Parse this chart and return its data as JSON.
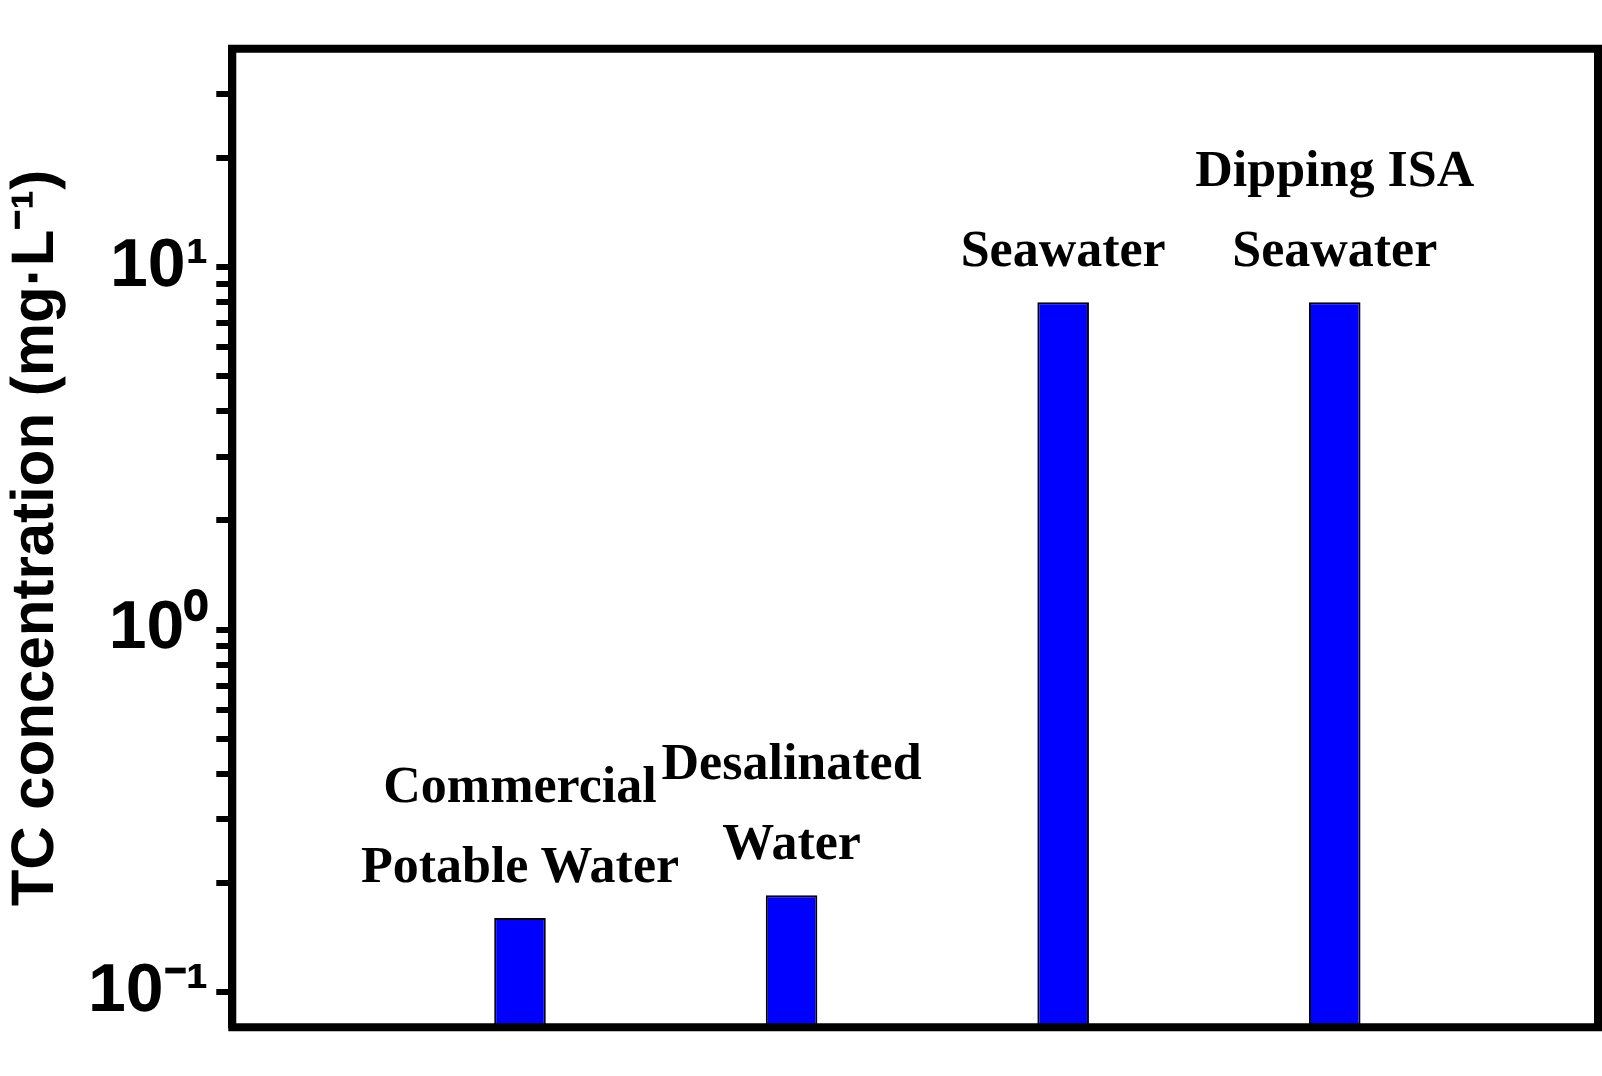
{
  "chart_data": {
    "type": "bar",
    "ylabel": "TC concentration (mg·L⁻¹)",
    "categories": [
      "Commercial Potable Water",
      "Desalinated Water",
      "Seawater",
      "Dipping ISA Seawater"
    ],
    "values": [
      0.16,
      0.185,
      8.0,
      8.0
    ],
    "color": "#0000ff",
    "log": "y",
    "ylim": [
      0.08,
      40
    ],
    "yticks": [
      {
        "value": 0.1,
        "label": "10⁻¹"
      },
      {
        "value": 0.2,
        "label": null
      },
      {
        "value": 0.3,
        "label": null
      },
      {
        "value": 0.4,
        "label": null
      },
      {
        "value": 0.5,
        "label": null
      },
      {
        "value": 0.6,
        "label": null
      },
      {
        "value": 0.7,
        "label": null
      },
      {
        "value": 0.8,
        "label": null
      },
      {
        "value": 0.9,
        "label": null
      },
      {
        "value": 1,
        "label": "10⁰"
      },
      {
        "value": 2,
        "label": null
      },
      {
        "value": 3,
        "label": null
      },
      {
        "value": 4,
        "label": null
      },
      {
        "value": 5,
        "label": null
      },
      {
        "value": 6,
        "label": null
      },
      {
        "value": 7,
        "label": null
      },
      {
        "value": 8,
        "label": null
      },
      {
        "value": 9,
        "label": null
      },
      {
        "value": 10,
        "label": "10¹"
      },
      {
        "value": 20,
        "label": null
      },
      {
        "value": 30,
        "label": null
      }
    ],
    "grid": false,
    "legend": false
  }
}
